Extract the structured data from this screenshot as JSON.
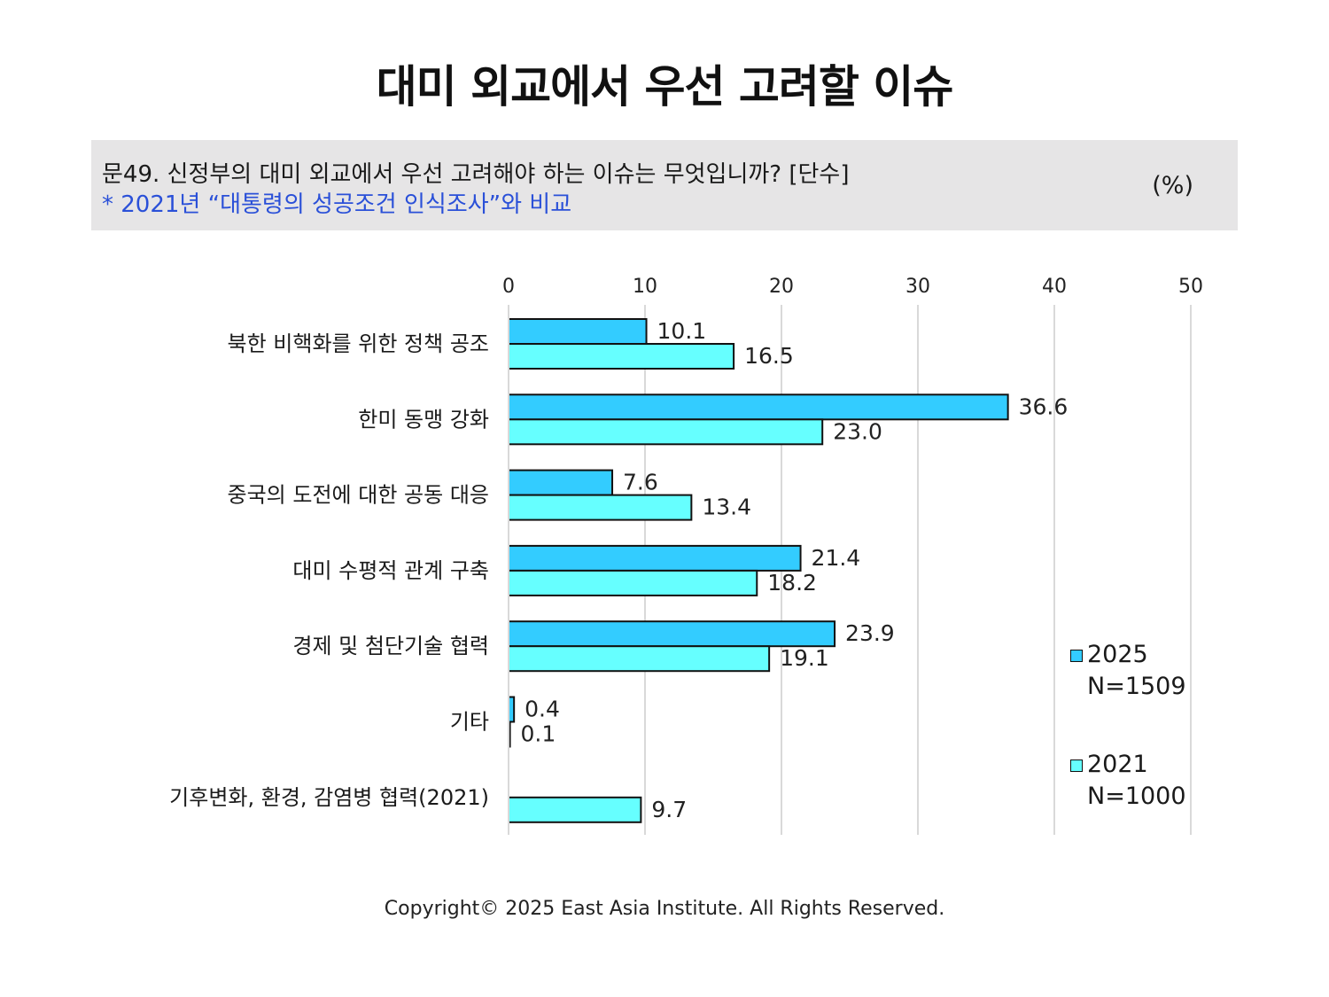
{
  "title": "대미 외교에서 우선 고려할 이슈",
  "question": {
    "text": "문49. 신정부의 대미 외교에서 우선 고려해야 하는 이슈는 무엇입니까? [단수]",
    "note": "* 2021년 “대통령의 성공조건 인식조사”와 비교",
    "unit": "(%)"
  },
  "colors": {
    "series_2025": "#33ccff",
    "series_2021": "#66ffff",
    "grid": "#d9d9d9",
    "note": "#2a50d8",
    "box": "#e6e5e6"
  },
  "chart_data": {
    "type": "bar",
    "orientation": "horizontal",
    "xlim": [
      0,
      50
    ],
    "xticks": [
      "0",
      "10",
      "20",
      "30",
      "40",
      "50"
    ],
    "grid": true,
    "legend_position": "right",
    "categories": [
      "북한 비핵화를 위한 정책 공조",
      "한미 동맹 강화",
      "중국의 도전에 대한 공동 대응",
      "대미 수평적 관계 구축",
      "경제 및 첨단기술 협력",
      "기타",
      "기후변화, 환경, 감염병 협력(2021)"
    ],
    "series": [
      {
        "name": "2025",
        "n_label": "N=1509",
        "values": [
          10.1,
          36.6,
          7.6,
          21.4,
          23.9,
          0.4,
          null
        ],
        "labels": [
          "10.1",
          "36.6",
          "7.6",
          "21.4",
          "23.9",
          "0.4",
          null
        ]
      },
      {
        "name": "2021",
        "n_label": "N=1000",
        "values": [
          16.5,
          23.0,
          13.4,
          18.2,
          19.1,
          0.1,
          9.7
        ],
        "labels": [
          "16.5",
          "23.0",
          "13.4",
          "18.2",
          "19.1",
          "0.1",
          "9.7"
        ]
      }
    ]
  },
  "copyright": "Copyright© 2025 East Asia Institute. All Rights Reserved."
}
